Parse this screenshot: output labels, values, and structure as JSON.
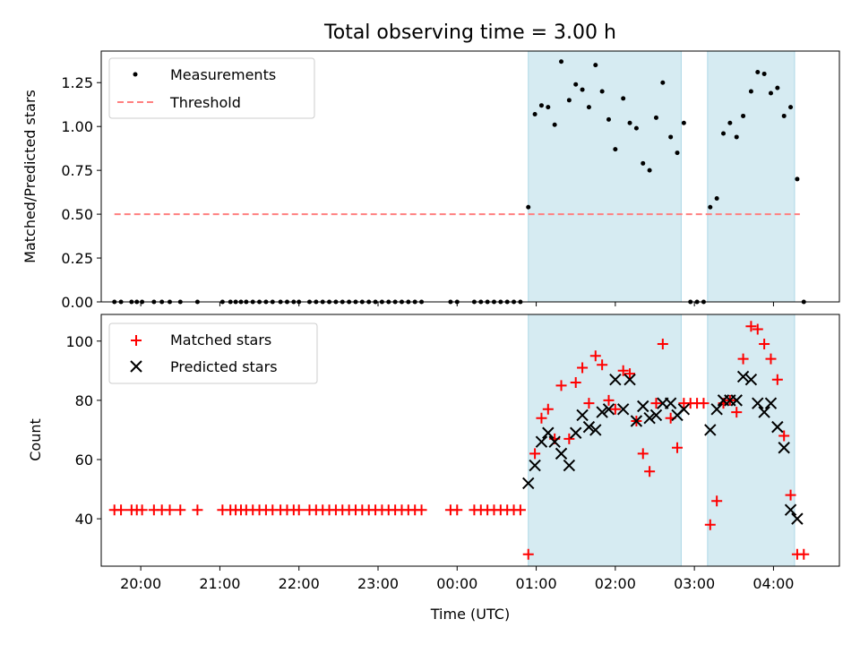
{
  "chart_data": {
    "type": "scatter",
    "title": "Total observing time = 3.00 h",
    "xlabel": "Time (UTC)",
    "x_unit": "hours (UTC)",
    "xlim": [
      "19:30",
      "04:50"
    ],
    "x_ticks": [
      {
        "time": "20:00",
        "label": "20:00"
      },
      {
        "time": "21:00",
        "label": "21:00"
      },
      {
        "time": "22:00",
        "label": "22:00"
      },
      {
        "time": "23:00",
        "label": "23:00"
      },
      {
        "time": "00:00",
        "label": "00:00"
      },
      {
        "time": "01:00",
        "label": "01:00"
      },
      {
        "time": "02:00",
        "label": "02:00"
      },
      {
        "time": "03:00",
        "label": "03:00"
      },
      {
        "time": "04:00",
        "label": "04:00"
      }
    ],
    "shaded_intervals": [
      {
        "start": "00:54",
        "end": "02:50",
        "color": "#add8e6"
      },
      {
        "start": "03:10",
        "end": "04:16",
        "color": "#add8e6"
      }
    ],
    "panels": [
      {
        "name": "top",
        "ylabel": "Matched/Predicted stars",
        "ylim": [
          0,
          1.43
        ],
        "y_ticks": [
          "0.00",
          "0.25",
          "0.50",
          "0.75",
          "1.00",
          "1.25"
        ],
        "legend": {
          "placement": "top-left",
          "entries": [
            "Measurements",
            "Threshold"
          ]
        },
        "threshold": {
          "name": "Threshold",
          "value": 0.5,
          "x_start": "19:40",
          "x_end": "04:20",
          "color": "#ff7f7f"
        },
        "series": [
          {
            "name": "Measurements",
            "marker": "dot",
            "color": "#000000",
            "points": [
              [
                "19:40",
                0
              ],
              [
                "19:45",
                0
              ],
              [
                "19:53",
                0
              ],
              [
                "19:57",
                0
              ],
              [
                "20:01",
                0
              ],
              [
                "20:10",
                0
              ],
              [
                "20:16",
                0
              ],
              [
                "20:22",
                0
              ],
              [
                "20:30",
                0
              ],
              [
                "20:43",
                0
              ],
              [
                "21:02",
                0
              ],
              [
                "21:08",
                0
              ],
              [
                "21:12",
                0
              ],
              [
                "21:16",
                0
              ],
              [
                "21:20",
                0
              ],
              [
                "21:25",
                0
              ],
              [
                "21:30",
                0
              ],
              [
                "21:35",
                0
              ],
              [
                "21:40",
                0
              ],
              [
                "21:46",
                0
              ],
              [
                "21:51",
                0
              ],
              [
                "21:56",
                0
              ],
              [
                "22:00",
                0
              ],
              [
                "22:08",
                0
              ],
              [
                "22:13",
                0
              ],
              [
                "22:18",
                0
              ],
              [
                "22:23",
                0
              ],
              [
                "22:28",
                0
              ],
              [
                "22:33",
                0
              ],
              [
                "22:38",
                0
              ],
              [
                "22:43",
                0
              ],
              [
                "22:48",
                0
              ],
              [
                "22:53",
                0
              ],
              [
                "22:58",
                0
              ],
              [
                "23:03",
                0
              ],
              [
                "23:08",
                0
              ],
              [
                "23:13",
                0
              ],
              [
                "23:18",
                0
              ],
              [
                "23:23",
                0
              ],
              [
                "23:28",
                0
              ],
              [
                "23:33",
                0
              ],
              [
                "23:55",
                0
              ],
              [
                "00:00",
                0
              ],
              [
                "00:13",
                0
              ],
              [
                "00:18",
                0
              ],
              [
                "00:23",
                0
              ],
              [
                "00:28",
                0
              ],
              [
                "00:33",
                0
              ],
              [
                "00:38",
                0
              ],
              [
                "00:43",
                0
              ],
              [
                "00:48",
                0
              ],
              [
                "00:54",
                0.54
              ],
              [
                "00:59",
                1.07
              ],
              [
                "01:04",
                1.12
              ],
              [
                "01:09",
                1.11
              ],
              [
                "01:14",
                1.01
              ],
              [
                "01:19",
                1.37
              ],
              [
                "01:25",
                1.15
              ],
              [
                "01:30",
                1.24
              ],
              [
                "01:35",
                1.21
              ],
              [
                "01:40",
                1.11
              ],
              [
                "01:45",
                1.35
              ],
              [
                "01:50",
                1.2
              ],
              [
                "01:55",
                1.04
              ],
              [
                "02:00",
                0.87
              ],
              [
                "02:06",
                1.16
              ],
              [
                "02:11",
                1.02
              ],
              [
                "02:16",
                0.99
              ],
              [
                "02:21",
                0.79
              ],
              [
                "02:26",
                0.75
              ],
              [
                "02:31",
                1.05
              ],
              [
                "02:36",
                1.25
              ],
              [
                "02:42",
                0.94
              ],
              [
                "02:47",
                0.85
              ],
              [
                "02:52",
                1.02
              ],
              [
                "02:57",
                0
              ],
              [
                "03:02",
                0
              ],
              [
                "03:07",
                0
              ],
              [
                "03:12",
                0.54
              ],
              [
                "03:17",
                0.59
              ],
              [
                "03:22",
                0.96
              ],
              [
                "03:27",
                1.02
              ],
              [
                "03:32",
                0.94
              ],
              [
                "03:37",
                1.06
              ],
              [
                "03:43",
                1.2
              ],
              [
                "03:48",
                1.31
              ],
              [
                "03:53",
                1.3
              ],
              [
                "03:58",
                1.19
              ],
              [
                "04:03",
                1.22
              ],
              [
                "04:08",
                1.06
              ],
              [
                "04:13",
                1.11
              ],
              [
                "04:18",
                0.7
              ],
              [
                "04:23",
                0
              ]
            ]
          }
        ]
      },
      {
        "name": "bottom",
        "ylabel": "Count",
        "ylim": [
          24,
          109
        ],
        "y_ticks": [
          "40",
          "60",
          "80",
          "100"
        ],
        "legend": {
          "placement": "top-left",
          "entries": [
            "Matched stars",
            "Predicted stars"
          ]
        },
        "series": [
          {
            "name": "Matched stars",
            "marker": "plus",
            "color": "#ff0000",
            "points": [
              [
                "19:40",
                43
              ],
              [
                "19:45",
                43
              ],
              [
                "19:53",
                43
              ],
              [
                "19:57",
                43
              ],
              [
                "20:01",
                43
              ],
              [
                "20:10",
                43
              ],
              [
                "20:16",
                43
              ],
              [
                "20:22",
                43
              ],
              [
                "20:30",
                43
              ],
              [
                "20:43",
                43
              ],
              [
                "21:02",
                43
              ],
              [
                "21:08",
                43
              ],
              [
                "21:12",
                43
              ],
              [
                "21:16",
                43
              ],
              [
                "21:20",
                43
              ],
              [
                "21:25",
                43
              ],
              [
                "21:30",
                43
              ],
              [
                "21:35",
                43
              ],
              [
                "21:40",
                43
              ],
              [
                "21:46",
                43
              ],
              [
                "21:51",
                43
              ],
              [
                "21:56",
                43
              ],
              [
                "22:00",
                43
              ],
              [
                "22:08",
                43
              ],
              [
                "22:13",
                43
              ],
              [
                "22:18",
                43
              ],
              [
                "22:23",
                43
              ],
              [
                "22:28",
                43
              ],
              [
                "22:33",
                43
              ],
              [
                "22:38",
                43
              ],
              [
                "22:43",
                43
              ],
              [
                "22:48",
                43
              ],
              [
                "22:53",
                43
              ],
              [
                "22:58",
                43
              ],
              [
                "23:03",
                43
              ],
              [
                "23:08",
                43
              ],
              [
                "23:13",
                43
              ],
              [
                "23:18",
                43
              ],
              [
                "23:23",
                43
              ],
              [
                "23:28",
                43
              ],
              [
                "23:33",
                43
              ],
              [
                "23:55",
                43
              ],
              [
                "00:00",
                43
              ],
              [
                "00:13",
                43
              ],
              [
                "00:18",
                43
              ],
              [
                "00:23",
                43
              ],
              [
                "00:28",
                43
              ],
              [
                "00:33",
                43
              ],
              [
                "00:38",
                43
              ],
              [
                "00:43",
                43
              ],
              [
                "00:48",
                43
              ],
              [
                "00:54",
                28
              ],
              [
                "00:59",
                62
              ],
              [
                "01:04",
                74
              ],
              [
                "01:09",
                77
              ],
              [
                "01:14",
                67
              ],
              [
                "01:19",
                85
              ],
              [
                "01:25",
                67
              ],
              [
                "01:30",
                86
              ],
              [
                "01:35",
                91
              ],
              [
                "01:40",
                79
              ],
              [
                "01:45",
                95
              ],
              [
                "01:50",
                92
              ],
              [
                "01:55",
                80
              ],
              [
                "02:00",
                77
              ],
              [
                "02:06",
                90
              ],
              [
                "02:11",
                89
              ],
              [
                "02:16",
                73
              ],
              [
                "02:21",
                62
              ],
              [
                "02:26",
                56
              ],
              [
                "02:31",
                79
              ],
              [
                "02:36",
                99
              ],
              [
                "02:42",
                74
              ],
              [
                "02:47",
                64
              ],
              [
                "02:52",
                79
              ],
              [
                "02:57",
                79
              ],
              [
                "03:02",
                79
              ],
              [
                "03:07",
                79
              ],
              [
                "03:12",
                38
              ],
              [
                "03:17",
                46
              ],
              [
                "03:22",
                79
              ],
              [
                "03:27",
                80
              ],
              [
                "03:32",
                76
              ],
              [
                "03:37",
                94
              ],
              [
                "03:43",
                105
              ],
              [
                "03:48",
                104
              ],
              [
                "03:53",
                99
              ],
              [
                "03:58",
                94
              ],
              [
                "04:03",
                87
              ],
              [
                "04:08",
                68
              ],
              [
                "04:13",
                48
              ],
              [
                "04:18",
                28
              ],
              [
                "04:23",
                28
              ]
            ]
          },
          {
            "name": "Predicted stars",
            "marker": "x",
            "color": "#000000",
            "points": [
              [
                "00:54",
                52
              ],
              [
                "00:59",
                58
              ],
              [
                "01:04",
                66
              ],
              [
                "01:09",
                69
              ],
              [
                "01:14",
                66
              ],
              [
                "01:19",
                62
              ],
              [
                "01:25",
                58
              ],
              [
                "01:30",
                69
              ],
              [
                "01:35",
                75
              ],
              [
                "01:40",
                71
              ],
              [
                "01:45",
                70
              ],
              [
                "01:50",
                76
              ],
              [
                "01:55",
                77
              ],
              [
                "02:00",
                87
              ],
              [
                "02:06",
                77
              ],
              [
                "02:11",
                87
              ],
              [
                "02:16",
                73
              ],
              [
                "02:21",
                78
              ],
              [
                "02:26",
                74
              ],
              [
                "02:31",
                75
              ],
              [
                "02:36",
                79
              ],
              [
                "02:42",
                79
              ],
              [
                "02:47",
                75
              ],
              [
                "02:52",
                77
              ],
              [
                "03:12",
                70
              ],
              [
                "03:17",
                77
              ],
              [
                "03:22",
                80
              ],
              [
                "03:27",
                80
              ],
              [
                "03:32",
                80
              ],
              [
                "03:37",
                88
              ],
              [
                "03:43",
                87
              ],
              [
                "03:48",
                79
              ],
              [
                "03:53",
                76
              ],
              [
                "03:58",
                79
              ],
              [
                "04:03",
                71
              ],
              [
                "04:08",
                64
              ],
              [
                "04:13",
                43
              ],
              [
                "04:18",
                40
              ]
            ]
          }
        ]
      }
    ]
  }
}
